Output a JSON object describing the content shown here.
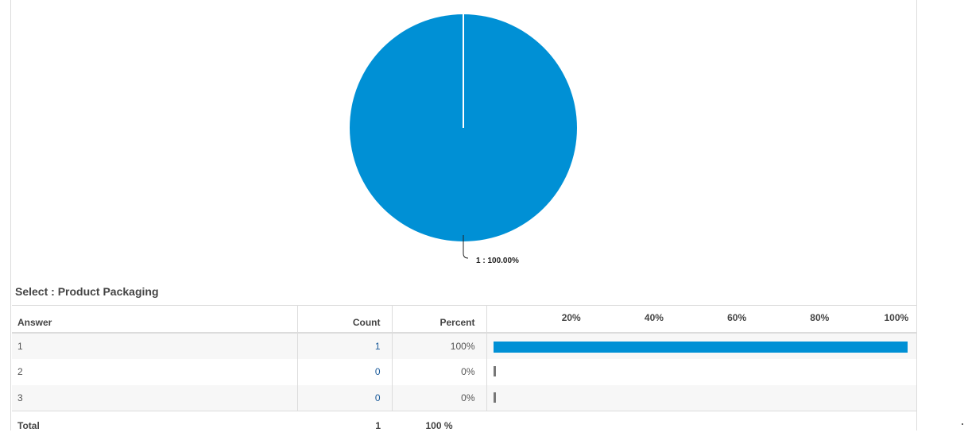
{
  "chart_data": [
    {
      "type": "pie",
      "slices": [
        {
          "label": "1",
          "value": 100.0,
          "color": "#0090d5"
        }
      ],
      "data_labels": [
        "1 : 100.00%"
      ]
    },
    {
      "type": "bar",
      "orientation": "horizontal",
      "categories": [
        "1",
        "2",
        "3"
      ],
      "values": [
        100,
        0,
        0
      ],
      "xlim": [
        0,
        100
      ],
      "x_ticks": [
        "20%",
        "40%",
        "60%",
        "80%",
        "100%"
      ],
      "bar_color": "#0090d5",
      "zero_color": "#777777"
    }
  ],
  "section": {
    "title": "Select : Product Packaging"
  },
  "table": {
    "headers": {
      "answer": "Answer",
      "count": "Count",
      "percent": "Percent"
    },
    "rows": [
      {
        "answer": "1",
        "count": "1",
        "percent": "100%",
        "value": 100
      },
      {
        "answer": "2",
        "count": "0",
        "percent": "0%",
        "value": 0
      },
      {
        "answer": "3",
        "count": "0",
        "percent": "0%",
        "value": 0
      }
    ],
    "total": {
      "label": "Total",
      "count": "1",
      "percent": "100 %"
    }
  }
}
